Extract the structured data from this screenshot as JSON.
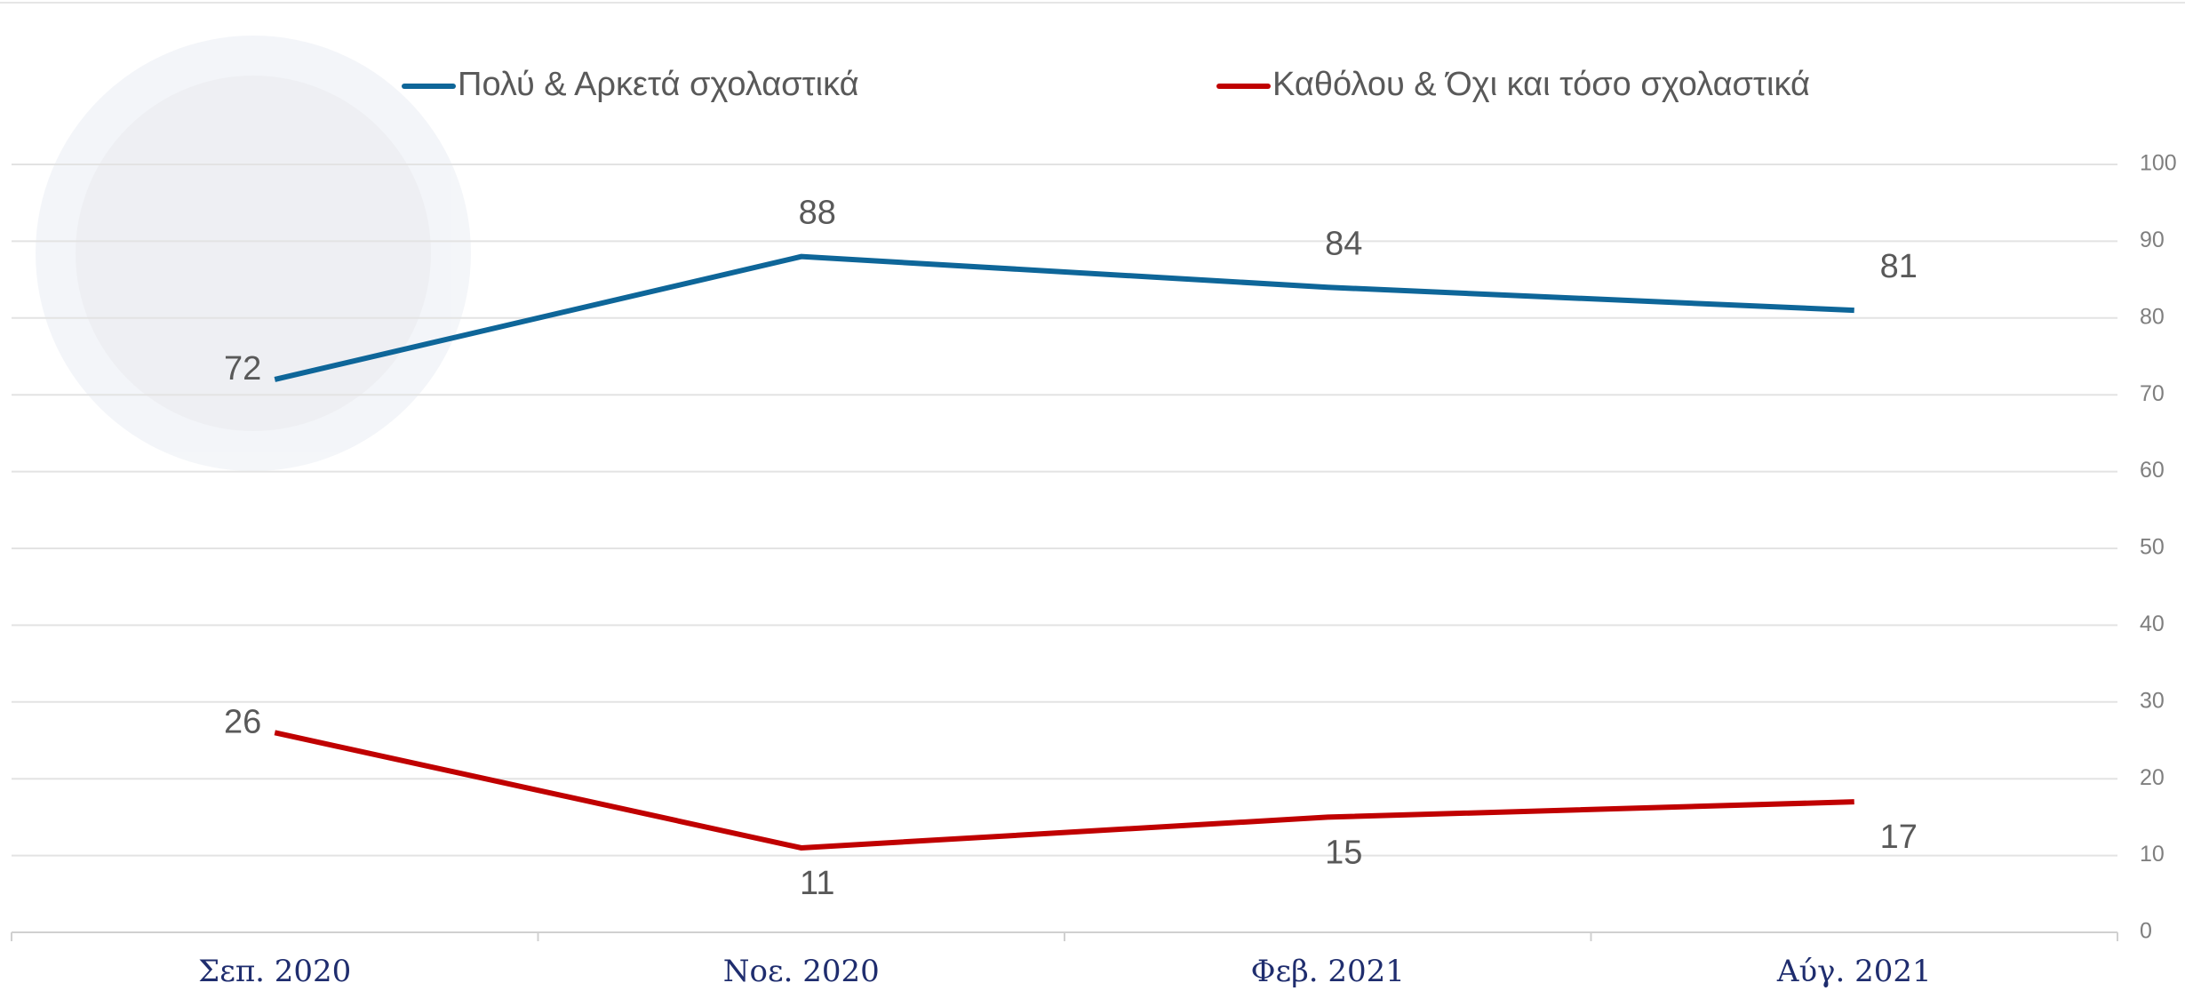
{
  "chart_data": {
    "type": "line",
    "categories": [
      "Σεπ. 2020",
      "Νοε. 2020",
      "Φεβ. 2021",
      "Αύγ. 2021"
    ],
    "series": [
      {
        "name": "Πολύ & Αρκετά σχολαστικά",
        "color": "#0e6699",
        "values": [
          72,
          88,
          84,
          81
        ]
      },
      {
        "name": "Καθόλου & Όχι και τόσο σχολαστικά",
        "color": "#c00000",
        "values": [
          26,
          11,
          15,
          17
        ]
      }
    ],
    "ylim": [
      0,
      100
    ],
    "yticks": [
      0,
      10,
      20,
      30,
      40,
      50,
      60,
      70,
      80,
      90,
      100
    ],
    "grid": true,
    "legend": "top"
  }
}
